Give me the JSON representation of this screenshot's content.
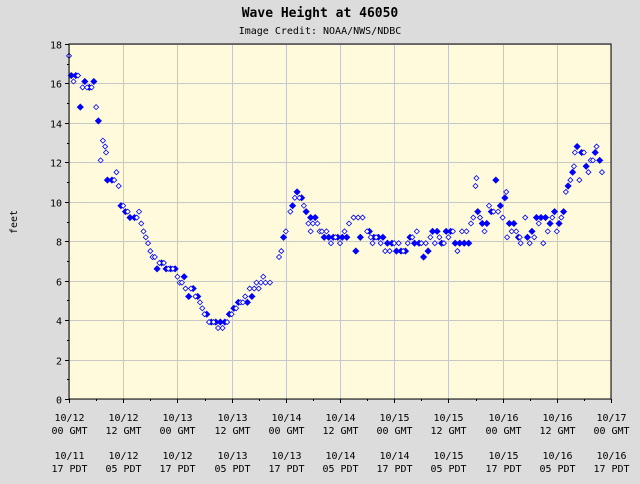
{
  "chart_data": {
    "type": "scatter",
    "title": "Wave Height at 46050",
    "subtitle": "Image Credit: NOAA/NWS/NDBC",
    "ylabel": "feet",
    "xlabel": "",
    "ylim": [
      0,
      18
    ],
    "yticks": [
      0,
      2,
      4,
      6,
      8,
      10,
      12,
      14,
      16,
      18
    ],
    "xlim_hours": [
      0,
      120
    ],
    "x_unit": "hours since 10/12 00 GMT",
    "xticks": [
      {
        "hour": 0,
        "gmt_date": "10/12",
        "gmt_time": "00 GMT",
        "pdt_date": "10/11",
        "pdt_time": "17 PDT"
      },
      {
        "hour": 12,
        "gmt_date": "10/12",
        "gmt_time": "12 GMT",
        "pdt_date": "10/12",
        "pdt_time": "05 PDT"
      },
      {
        "hour": 24,
        "gmt_date": "10/13",
        "gmt_time": "00 GMT",
        "pdt_date": "10/12",
        "pdt_time": "17 PDT"
      },
      {
        "hour": 36,
        "gmt_date": "10/13",
        "gmt_time": "12 GMT",
        "pdt_date": "10/13",
        "pdt_time": "05 PDT"
      },
      {
        "hour": 48,
        "gmt_date": "10/14",
        "gmt_time": "00 GMT",
        "pdt_date": "10/13",
        "pdt_time": "17 PDT"
      },
      {
        "hour": 60,
        "gmt_date": "10/14",
        "gmt_time": "12 GMT",
        "pdt_date": "10/14",
        "pdt_time": "05 PDT"
      },
      {
        "hour": 72,
        "gmt_date": "10/15",
        "gmt_time": "00 GMT",
        "pdt_date": "10/14",
        "pdt_time": "17 PDT"
      },
      {
        "hour": 84,
        "gmt_date": "10/15",
        "gmt_time": "12 GMT",
        "pdt_date": "10/15",
        "pdt_time": "05 PDT"
      },
      {
        "hour": 96,
        "gmt_date": "10/16",
        "gmt_time": "00 GMT",
        "pdt_date": "10/15",
        "pdt_time": "17 PDT"
      },
      {
        "hour": 108,
        "gmt_date": "10/16",
        "gmt_time": "12 GMT",
        "pdt_date": "10/16",
        "pdt_time": "05 PDT"
      },
      {
        "hour": 120,
        "gmt_date": "10/17",
        "gmt_time": "00 GMT",
        "pdt_date": "10/16",
        "pdt_time": "17 PDT"
      }
    ],
    "grid": true,
    "colors": {
      "marker": "#0000ff",
      "plot_bg": "#fffadc",
      "page_bg": "#dcdcdc",
      "grid": "#c8c8c8"
    },
    "series": [
      {
        "marker": "filled-diamond",
        "points": [
          [
            0.5,
            16.4
          ],
          [
            1.5,
            16.4
          ],
          [
            2.5,
            14.8
          ],
          [
            3.5,
            16.1
          ],
          [
            4.5,
            15.8
          ],
          [
            5.5,
            16.1
          ],
          [
            6.5,
            14.1
          ],
          [
            8.5,
            11.1
          ],
          [
            9.5,
            11.1
          ],
          [
            11.5,
            9.8
          ],
          [
            12.5,
            9.5
          ],
          [
            13.5,
            9.2
          ],
          [
            14.5,
            9.2
          ],
          [
            19.5,
            6.6
          ],
          [
            20.5,
            6.9
          ],
          [
            21.5,
            6.6
          ],
          [
            22.5,
            6.6
          ],
          [
            23.5,
            6.6
          ],
          [
            25.5,
            6.2
          ],
          [
            26.5,
            5.2
          ],
          [
            27.5,
            5.6
          ],
          [
            28.5,
            5.2
          ],
          [
            30.5,
            4.3
          ],
          [
            31.5,
            3.9
          ],
          [
            32.5,
            3.9
          ],
          [
            33.5,
            3.9
          ],
          [
            34.5,
            3.9
          ],
          [
            35.5,
            4.3
          ],
          [
            36.5,
            4.6
          ],
          [
            37.5,
            4.9
          ],
          [
            39.5,
            4.9
          ],
          [
            40.5,
            5.2
          ],
          [
            47.5,
            8.2
          ],
          [
            49.5,
            9.8
          ],
          [
            50.5,
            10.5
          ],
          [
            51.5,
            10.2
          ],
          [
            52.5,
            9.5
          ],
          [
            53.5,
            9.2
          ],
          [
            54.5,
            9.2
          ],
          [
            56.5,
            8.2
          ],
          [
            57.5,
            8.2
          ],
          [
            58.5,
            8.2
          ],
          [
            59.5,
            8.2
          ],
          [
            60.5,
            8.2
          ],
          [
            61.5,
            8.2
          ],
          [
            63.5,
            7.5
          ],
          [
            64.5,
            8.2
          ],
          [
            66.5,
            8.5
          ],
          [
            67.5,
            8.2
          ],
          [
            68.5,
            8.2
          ],
          [
            69.5,
            8.2
          ],
          [
            70.5,
            7.9
          ],
          [
            71.5,
            7.9
          ],
          [
            72.5,
            7.5
          ],
          [
            73.5,
            7.5
          ],
          [
            74.5,
            7.5
          ],
          [
            75.5,
            8.2
          ],
          [
            76.5,
            7.9
          ],
          [
            77.5,
            7.9
          ],
          [
            78.5,
            7.2
          ],
          [
            79.5,
            7.5
          ],
          [
            80.5,
            8.5
          ],
          [
            81.5,
            8.5
          ],
          [
            82.5,
            7.9
          ],
          [
            83.5,
            8.5
          ],
          [
            84.5,
            8.5
          ],
          [
            85.5,
            7.9
          ],
          [
            86.5,
            7.9
          ],
          [
            87.5,
            7.9
          ],
          [
            88.5,
            7.9
          ],
          [
            90.5,
            9.5
          ],
          [
            91.5,
            8.9
          ],
          [
            92.5,
            8.9
          ],
          [
            93.5,
            9.5
          ],
          [
            94.5,
            11.1
          ],
          [
            95.5,
            9.8
          ],
          [
            96.5,
            10.2
          ],
          [
            97.5,
            8.9
          ],
          [
            98.5,
            8.9
          ],
          [
            99.5,
            8.2
          ],
          [
            101.5,
            8.2
          ],
          [
            102.5,
            8.5
          ],
          [
            103.5,
            9.2
          ],
          [
            104.5,
            9.2
          ],
          [
            105.5,
            9.2
          ],
          [
            106.5,
            8.9
          ],
          [
            107.5,
            9.5
          ],
          [
            108.5,
            8.9
          ],
          [
            109.5,
            9.5
          ],
          [
            110.5,
            10.8
          ],
          [
            111.5,
            11.5
          ],
          [
            112.5,
            12.8
          ],
          [
            113.5,
            12.5
          ],
          [
            114.5,
            11.8
          ],
          [
            116.5,
            12.5
          ],
          [
            117.5,
            12.1
          ]
        ]
      },
      {
        "marker": "open-diamond",
        "points": [
          [
            0.0,
            17.4
          ],
          [
            1.0,
            16.1
          ],
          [
            2.0,
            16.4
          ],
          [
            3.0,
            15.8
          ],
          [
            4.0,
            15.8
          ],
          [
            5.0,
            15.8
          ],
          [
            6.0,
            14.8
          ],
          [
            7.0,
            12.1
          ],
          [
            7.5,
            13.1
          ],
          [
            8.0,
            12.8
          ],
          [
            8.2,
            12.5
          ],
          [
            10.0,
            11.1
          ],
          [
            10.5,
            11.5
          ],
          [
            11.0,
            10.8
          ],
          [
            12.0,
            9.8
          ],
          [
            13.0,
            9.5
          ],
          [
            15.0,
            9.2
          ],
          [
            15.5,
            9.5
          ],
          [
            16.0,
            8.9
          ],
          [
            16.5,
            8.5
          ],
          [
            17.0,
            8.2
          ],
          [
            17.5,
            7.9
          ],
          [
            18.0,
            7.5
          ],
          [
            18.5,
            7.2
          ],
          [
            19.0,
            7.2
          ],
          [
            20.0,
            6.9
          ],
          [
            21.0,
            6.9
          ],
          [
            22.0,
            6.6
          ],
          [
            23.0,
            6.6
          ],
          [
            24.0,
            6.2
          ],
          [
            24.5,
            5.9
          ],
          [
            25.0,
            5.9
          ],
          [
            25.8,
            5.6
          ],
          [
            27.0,
            5.6
          ],
          [
            28.0,
            5.2
          ],
          [
            29.0,
            4.9
          ],
          [
            29.5,
            4.6
          ],
          [
            30.0,
            4.3
          ],
          [
            31.0,
            3.9
          ],
          [
            32.0,
            3.9
          ],
          [
            33.0,
            3.6
          ],
          [
            34.0,
            3.6
          ],
          [
            35.0,
            3.9
          ],
          [
            36.0,
            4.3
          ],
          [
            37.0,
            4.6
          ],
          [
            38.0,
            4.9
          ],
          [
            38.5,
            4.9
          ],
          [
            39.0,
            5.2
          ],
          [
            40.0,
            5.6
          ],
          [
            41.0,
            5.6
          ],
          [
            41.5,
            5.9
          ],
          [
            42.0,
            5.6
          ],
          [
            42.5,
            5.9
          ],
          [
            43.0,
            6.2
          ],
          [
            43.5,
            5.9
          ],
          [
            44.5,
            5.9
          ],
          [
            46.5,
            7.2
          ],
          [
            47.0,
            7.5
          ],
          [
            48.0,
            8.5
          ],
          [
            49.0,
            9.5
          ],
          [
            50.0,
            10.2
          ],
          [
            51.0,
            10.2
          ],
          [
            52.0,
            9.8
          ],
          [
            53.0,
            8.9
          ],
          [
            53.5,
            8.5
          ],
          [
            54.0,
            8.9
          ],
          [
            55.0,
            8.9
          ],
          [
            55.5,
            8.5
          ],
          [
            56.0,
            8.5
          ],
          [
            57.0,
            8.5
          ],
          [
            58.0,
            7.9
          ],
          [
            59.0,
            8.2
          ],
          [
            60.0,
            7.9
          ],
          [
            61.0,
            8.5
          ],
          [
            62.0,
            8.9
          ],
          [
            63.0,
            9.2
          ],
          [
            64.0,
            9.2
          ],
          [
            65.0,
            9.2
          ],
          [
            66.0,
            8.5
          ],
          [
            66.8,
            8.2
          ],
          [
            67.2,
            7.9
          ],
          [
            68.0,
            8.2
          ],
          [
            69.0,
            7.9
          ],
          [
            70.0,
            7.5
          ],
          [
            71.0,
            7.5
          ],
          [
            72.0,
            7.9
          ],
          [
            73.0,
            7.9
          ],
          [
            74.0,
            7.5
          ],
          [
            75.0,
            7.9
          ],
          [
            76.0,
            8.2
          ],
          [
            77.0,
            8.5
          ],
          [
            78.0,
            7.9
          ],
          [
            79.0,
            7.9
          ],
          [
            80.0,
            8.2
          ],
          [
            81.0,
            7.9
          ],
          [
            82.0,
            8.2
          ],
          [
            83.0,
            7.9
          ],
          [
            84.0,
            8.2
          ],
          [
            85.0,
            8.5
          ],
          [
            86.0,
            7.5
          ],
          [
            87.0,
            8.5
          ],
          [
            88.0,
            8.5
          ],
          [
            89.0,
            8.9
          ],
          [
            89.5,
            9.2
          ],
          [
            90.0,
            10.8
          ],
          [
            90.2,
            11.2
          ],
          [
            91.0,
            9.2
          ],
          [
            92.0,
            8.5
          ],
          [
            93.0,
            9.8
          ],
          [
            94.0,
            9.5
          ],
          [
            95.0,
            9.5
          ],
          [
            96.0,
            9.2
          ],
          [
            96.8,
            10.5
          ],
          [
            97.0,
            8.2
          ],
          [
            98.0,
            8.5
          ],
          [
            99.0,
            8.5
          ],
          [
            99.8,
            8.2
          ],
          [
            100.0,
            7.9
          ],
          [
            101.0,
            9.2
          ],
          [
            102.0,
            7.9
          ],
          [
            103.0,
            8.2
          ],
          [
            104.0,
            8.9
          ],
          [
            105.0,
            7.9
          ],
          [
            106.0,
            8.5
          ],
          [
            107.0,
            9.2
          ],
          [
            108.0,
            8.5
          ],
          [
            109.0,
            9.2
          ],
          [
            110.0,
            10.5
          ],
          [
            111.0,
            11.1
          ],
          [
            111.8,
            11.8
          ],
          [
            112.0,
            12.5
          ],
          [
            113.0,
            11.1
          ],
          [
            114.0,
            12.5
          ],
          [
            115.0,
            11.5
          ],
          [
            115.5,
            12.1
          ],
          [
            116.0,
            12.1
          ],
          [
            116.8,
            12.8
          ],
          [
            118.0,
            11.5
          ]
        ]
      }
    ]
  }
}
